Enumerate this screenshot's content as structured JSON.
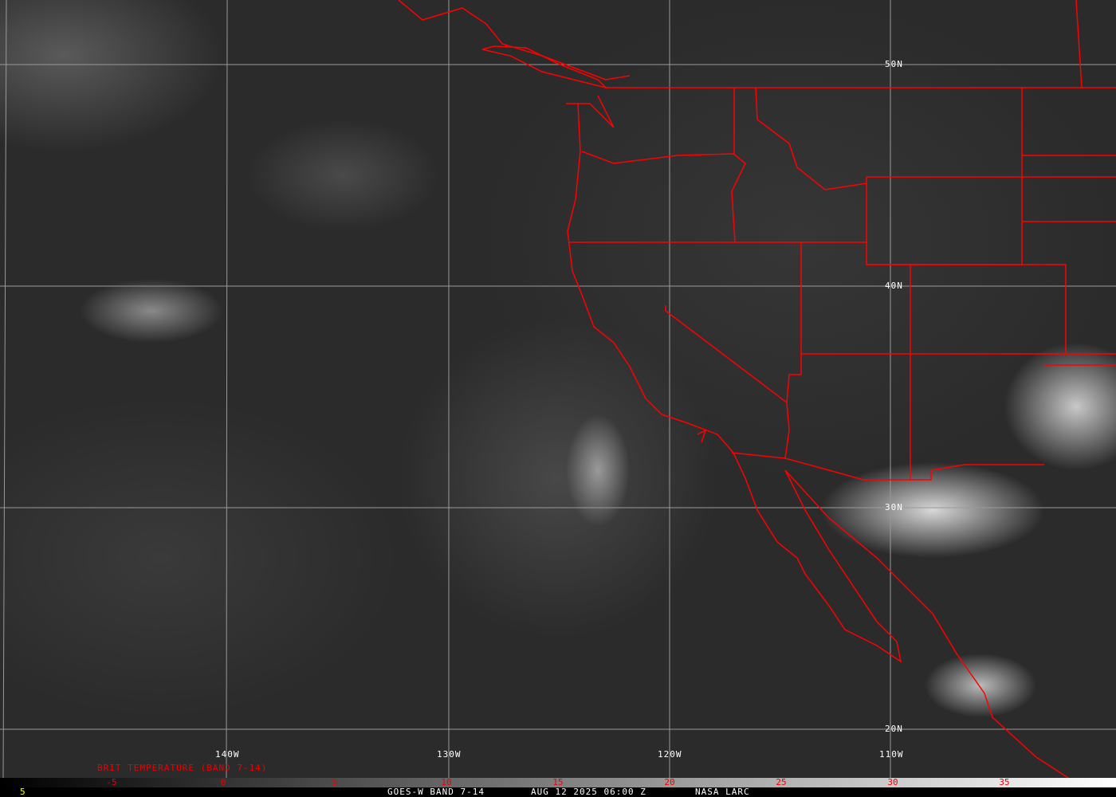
{
  "grid": {
    "latitudes": [
      "50N",
      "40N",
      "30N",
      "20N"
    ],
    "longitudes": [
      "140W",
      "130W",
      "120W",
      "110W"
    ]
  },
  "legend": {
    "title": "BRIT TEMPERATURE (BAND 7-14)",
    "scale_range": [
      -10,
      40
    ],
    "ticks": [
      "-5",
      "0",
      "5",
      "10",
      "15",
      "20",
      "25",
      "30",
      "35"
    ]
  },
  "footer": {
    "left_value": "5",
    "satellite": "GOES-W BAND 7-14",
    "datetime": "AUG 12 2025 06:00 Z",
    "source": "NASA LARC"
  },
  "colors": {
    "boundaries": "#ff0000",
    "grid": "#a0a0a0",
    "tick_labels": "#ee0000",
    "footer_value": "#ffff00"
  }
}
